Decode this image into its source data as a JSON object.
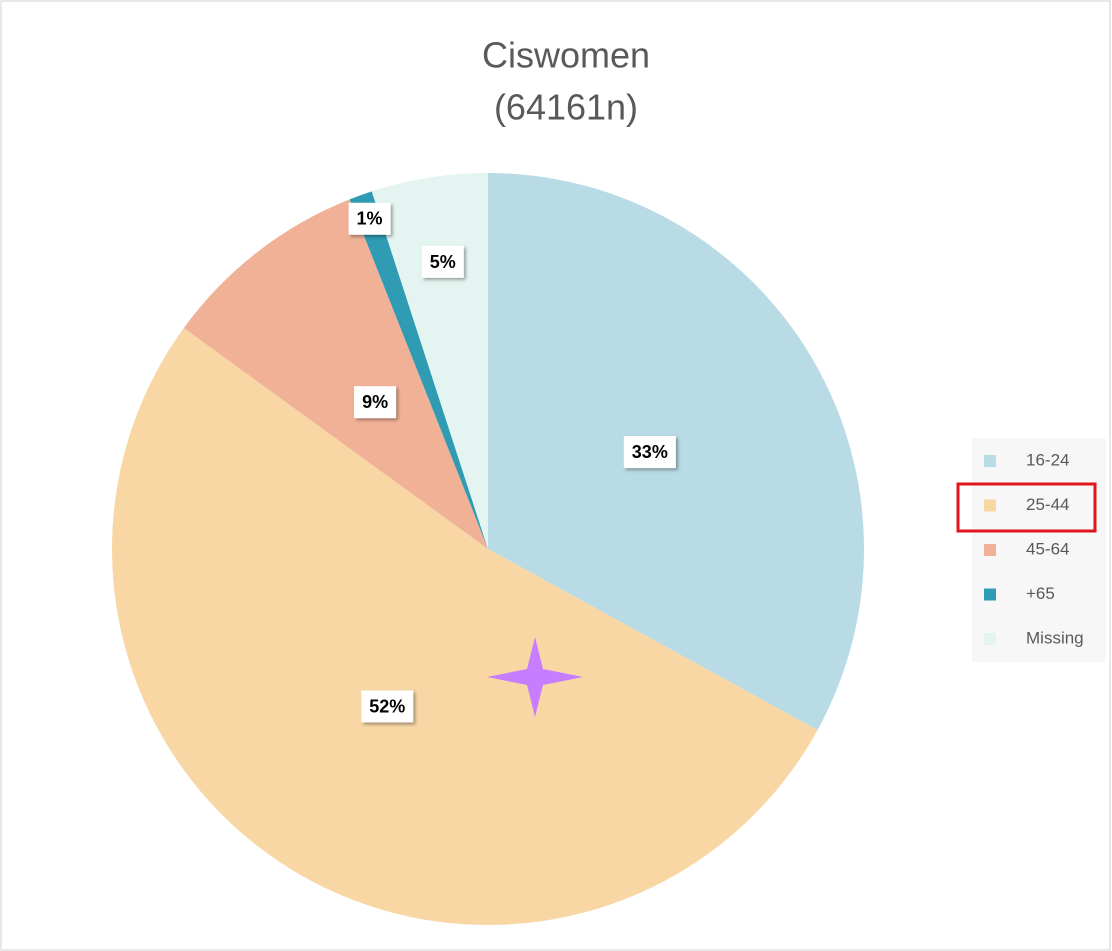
{
  "chart_data": {
    "type": "pie",
    "title": "Ciswomen",
    "subtitle": "(64161n)",
    "categories": [
      "16-24",
      "25-44",
      "45-64",
      "+65",
      "Missing"
    ],
    "values": [
      33,
      52,
      9,
      1,
      5
    ],
    "value_labels": [
      "33%",
      "52%",
      "9%",
      "1%",
      "5%"
    ],
    "colors": [
      "#b9dbe6",
      "#f8d7a4",
      "#f0b196",
      "#2f9cb4",
      "#e4f4f1"
    ],
    "legend": "right"
  }
}
